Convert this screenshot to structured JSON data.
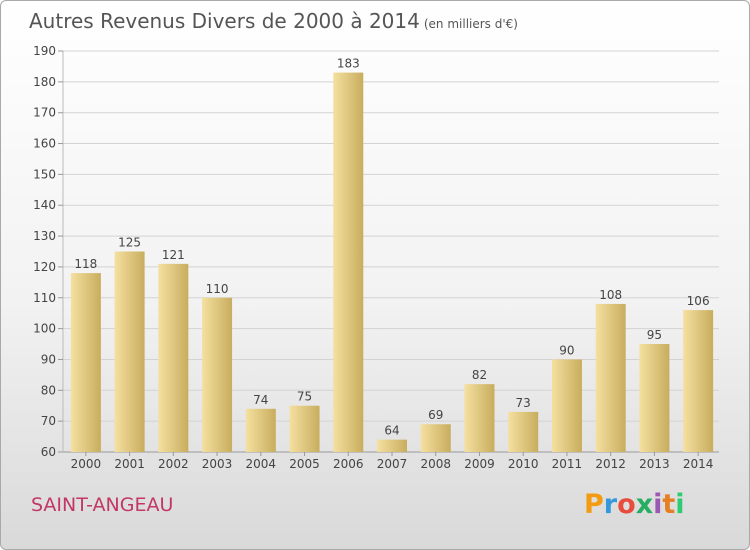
{
  "header": {
    "title": "Autres Revenus Divers de 2000 à 2014",
    "unit": "(en milliers d'€)"
  },
  "footer": {
    "commune": "SAINT-ANGEAU",
    "logo_text": "Proxiti",
    "logo_colors": [
      "#f39c12",
      "#3498db",
      "#e74c3c",
      "#27ae60",
      "#9b59b6",
      "#e67e22",
      "#2ecc71"
    ]
  },
  "colors": {
    "bar_light": "#f5e0a0",
    "bar_dark": "#c8ad5e",
    "grid": "#d3d3d3",
    "axis_text": "#444444",
    "title": "#555555",
    "commune": "#c33764"
  },
  "chart_data": {
    "type": "bar",
    "categories": [
      "2000",
      "2001",
      "2002",
      "2003",
      "2004",
      "2005",
      "2006",
      "2007",
      "2008",
      "2009",
      "2010",
      "2011",
      "2012",
      "2013",
      "2014"
    ],
    "values": [
      118,
      125,
      121,
      110,
      74,
      75,
      183,
      64,
      69,
      82,
      73,
      90,
      108,
      95,
      106
    ],
    "ylim": [
      60,
      190
    ],
    "yticks": [
      60,
      70,
      80,
      90,
      100,
      110,
      120,
      130,
      140,
      150,
      160,
      170,
      180,
      190
    ],
    "grid": true,
    "legend": "none"
  }
}
